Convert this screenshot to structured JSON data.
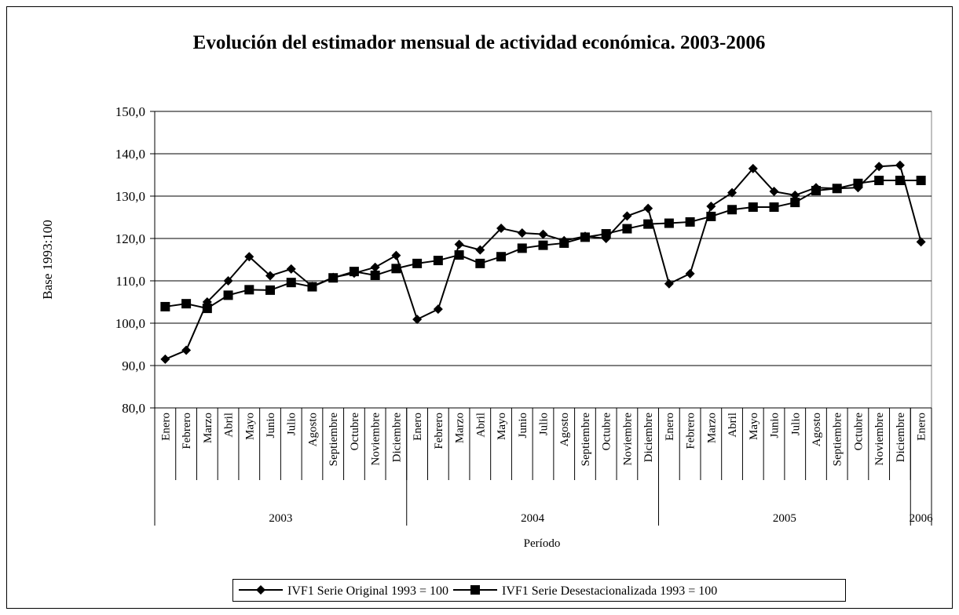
{
  "chart_data": {
    "type": "line",
    "title": "Evolución del estimador mensual de actividad económica. 2003-2006",
    "y_label": "Base 1993:100",
    "x_label": "Período",
    "categories": [
      "Enero",
      "Febrero",
      "Marzo",
      "Abril",
      "Mayo",
      "Junio",
      "Julio",
      "Agosto",
      "Septiembre",
      "Octubre",
      "Noviembre",
      "Diciembre",
      "Enero",
      "Febrero",
      "Marzo",
      "Abril",
      "Mayo",
      "Junio",
      "Julio",
      "Agosto",
      "Septiembre",
      "Octubre",
      "Noviembre",
      "Diciembre",
      "Enero",
      "Febrero",
      "Marzo",
      "Abril",
      "Mayo",
      "Junio",
      "Julio",
      "Agosto",
      "Septiembre",
      "Octubre",
      "Noviembre",
      "Diciembre",
      "Enero"
    ],
    "category_groups": [
      {
        "label": "2003",
        "count": 12
      },
      {
        "label": "2004",
        "count": 12
      },
      {
        "label": "2005",
        "count": 12
      },
      {
        "label": "2006",
        "count": 1
      }
    ],
    "series": [
      {
        "name": "IVF1 Serie Original 1993 = 100",
        "color": "#000000",
        "marker": "diamond",
        "values": [
          91.5,
          93.6,
          105.0,
          110.0,
          115.7,
          111.2,
          112.8,
          108.7,
          110.8,
          111.8,
          113.2,
          116.0,
          100.9,
          103.3,
          118.6,
          117.3,
          122.4,
          121.3,
          121.0,
          119.5,
          120.5,
          120.0,
          125.3,
          127.1,
          109.3,
          111.7,
          127.6,
          130.8,
          136.5,
          131.1,
          130.2,
          132.0,
          131.8,
          132.0,
          137.0,
          137.3,
          119.2
        ]
      },
      {
        "name": "IVF1 Serie Desestacionalizada 1993 = 100",
        "color": "#000000",
        "marker": "square",
        "values": [
          103.9,
          104.6,
          103.5,
          106.6,
          107.9,
          107.8,
          109.6,
          108.6,
          110.7,
          112.2,
          111.3,
          112.9,
          114.1,
          114.8,
          116.1,
          114.1,
          115.7,
          117.7,
          118.4,
          118.9,
          120.3,
          121.1,
          122.3,
          123.4,
          123.6,
          123.9,
          125.2,
          126.8,
          127.4,
          127.4,
          128.5,
          131.3,
          131.8,
          133.0,
          133.7,
          133.7,
          133.7
        ]
      }
    ],
    "ylim": [
      80,
      150
    ],
    "yticks": [
      {
        "value": 80,
        "label": "80,0"
      },
      {
        "value": 90,
        "label": "90,0"
      },
      {
        "value": 100,
        "label": "100,0"
      },
      {
        "value": 110,
        "label": "110,0"
      },
      {
        "value": 120,
        "label": "120,0"
      },
      {
        "value": 130,
        "label": "130,0"
      },
      {
        "value": 140,
        "label": "140,0"
      },
      {
        "value": 150,
        "label": "150,0"
      }
    ],
    "grid": true,
    "legend": "bottom"
  }
}
